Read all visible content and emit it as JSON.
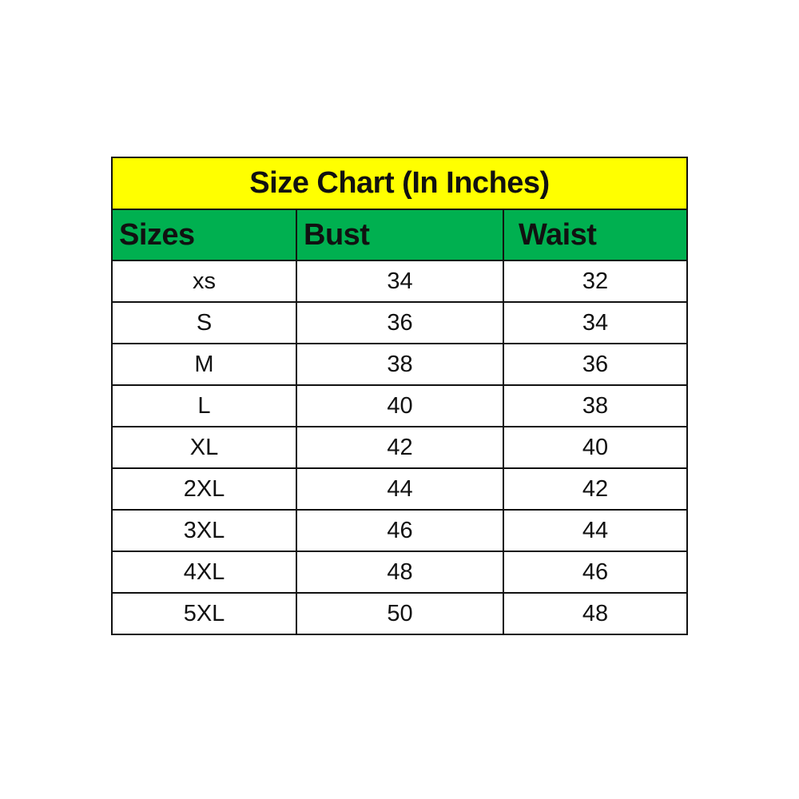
{
  "title": "Size Chart (In Inches)",
  "colors": {
    "title_bg": "#ffff00",
    "header_bg": "#00b050"
  },
  "headers": [
    "Sizes",
    "Bust",
    "Waist"
  ],
  "rows": [
    [
      "xs",
      "34",
      "32"
    ],
    [
      "S",
      "36",
      "34"
    ],
    [
      "M",
      "38",
      "36"
    ],
    [
      "L",
      "40",
      "38"
    ],
    [
      "XL",
      "42",
      "40"
    ],
    [
      "2XL",
      "44",
      "42"
    ],
    [
      "3XL",
      "46",
      "44"
    ],
    [
      "4XL",
      "48",
      "46"
    ],
    [
      "5XL",
      "50",
      "48"
    ]
  ]
}
